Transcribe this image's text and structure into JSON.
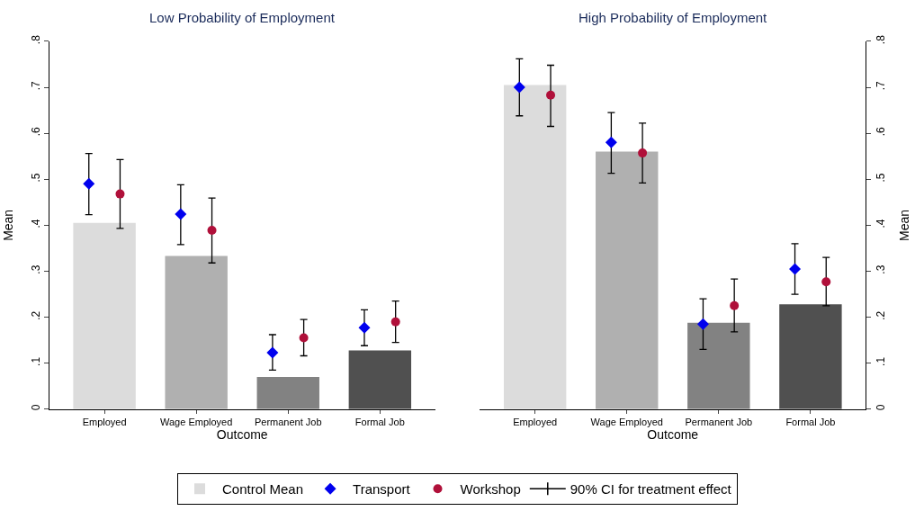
{
  "chart_data": [
    {
      "type": "bar",
      "title": "Low Probability of Employment",
      "xlabel": "Outcome",
      "ylabel": "Mean",
      "categories": [
        "Employed",
        "Wage Employed",
        "Permanent Job",
        "Formal Job"
      ],
      "ylim": [
        0,
        0.8
      ],
      "yticks": [
        {
          "value": 0,
          "label": "0"
        },
        {
          "value": 0.1,
          "label": ".1"
        },
        {
          "value": 0.2,
          "label": ".2"
        },
        {
          "value": 0.3,
          "label": ".3"
        },
        {
          "value": 0.4,
          "label": ".4"
        },
        {
          "value": 0.5,
          "label": ".5"
        },
        {
          "value": 0.6,
          "label": ".6"
        },
        {
          "value": 0.7,
          "label": ".7"
        },
        {
          "value": 0.8,
          "label": ".8"
        }
      ],
      "grid": false,
      "legend": "bottom",
      "annotations": [
        "90% CI for treatment effect"
      ],
      "series": [
        {
          "name": "Control Mean",
          "color": "#dcdcdc",
          "colors": [
            "#dcdcdc",
            "#b0b0b0",
            "#828282",
            "#505050"
          ],
          "values": [
            0.405,
            0.333,
            0.07,
            0.128
          ]
        },
        {
          "name": "Transport",
          "type": "scatter",
          "marker": "diamond",
          "color": "#0000ee",
          "values": [
            0.49,
            0.424,
            0.123,
            0.177
          ],
          "errors": [
            [
              0.423,
              0.556
            ],
            [
              0.358,
              0.488
            ],
            [
              0.085,
              0.162
            ],
            [
              0.138,
              0.216
            ]
          ]
        },
        {
          "name": "Workshop",
          "type": "scatter",
          "marker": "circle",
          "color": "#b0103a",
          "values": [
            0.468,
            0.389,
            0.155,
            0.19
          ],
          "errors": [
            [
              0.393,
              0.543
            ],
            [
              0.318,
              0.459
            ],
            [
              0.116,
              0.195
            ],
            [
              0.145,
              0.235
            ]
          ]
        }
      ]
    },
    {
      "type": "bar",
      "title": "High Probability of Employment",
      "xlabel": "Outcome",
      "ylabel": "Mean",
      "categories": [
        "Employed",
        "Wage Employed",
        "Permanent Job",
        "Formal Job"
      ],
      "ylim": [
        0,
        0.8
      ],
      "yticks": [
        {
          "value": 0,
          "label": "0"
        },
        {
          "value": 0.1,
          "label": ".1"
        },
        {
          "value": 0.2,
          "label": ".2"
        },
        {
          "value": 0.3,
          "label": ".3"
        },
        {
          "value": 0.4,
          "label": ".4"
        },
        {
          "value": 0.5,
          "label": ".5"
        },
        {
          "value": 0.6,
          "label": ".6"
        },
        {
          "value": 0.7,
          "label": ".7"
        },
        {
          "value": 0.8,
          "label": ".8"
        }
      ],
      "grid": false,
      "legend": false,
      "series": [
        {
          "color": "#dcdcdc",
          "colors": [
            "#dcdcdc",
            "#b0b0b0",
            "#828282",
            "#505050"
          ],
          "values": [
            0.705,
            0.56,
            0.188,
            0.228
          ]
        },
        {
          "type": "scatter",
          "marker": "diamond",
          "color": "#0000ee",
          "values": [
            0.7,
            0.58,
            0.185,
            0.305
          ],
          "errors": [
            [
              0.638,
              0.762
            ],
            [
              0.513,
              0.645
            ],
            [
              0.13,
              0.24
            ],
            [
              0.25,
              0.36
            ]
          ]
        },
        {
          "type": "scatter",
          "marker": "circle",
          "color": "#b0103a",
          "values": [
            0.683,
            0.557,
            0.225,
            0.277
          ],
          "errors": [
            [
              0.615,
              0.748
            ],
            [
              0.492,
              0.622
            ],
            [
              0.168,
              0.283
            ],
            [
              0.225,
              0.33
            ]
          ]
        }
      ]
    }
  ]
}
